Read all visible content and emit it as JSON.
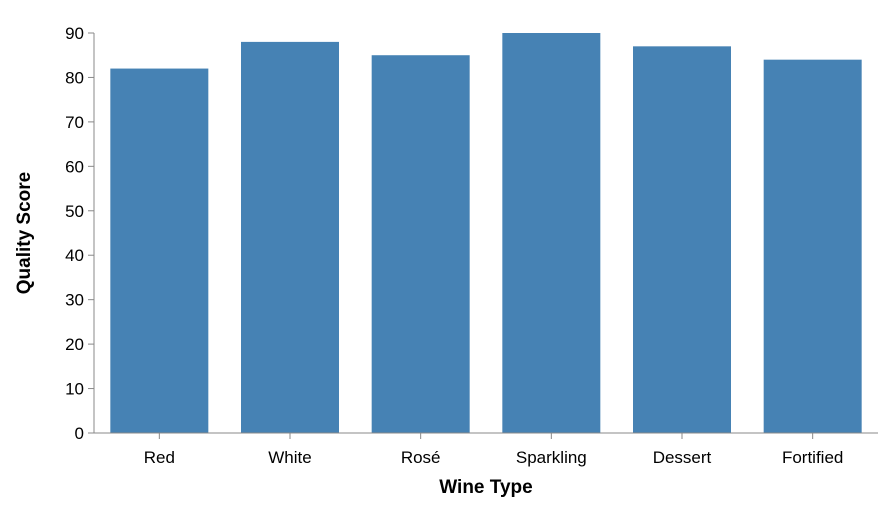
{
  "chart_data": {
    "type": "bar",
    "title": "",
    "xlabel": "Wine Type",
    "ylabel": "Quality Score",
    "categories": [
      "Red",
      "White",
      "Rosé",
      "Sparkling",
      "Dessert",
      "Fortified"
    ],
    "values": [
      82,
      88,
      85,
      90,
      87,
      84
    ],
    "ylim": [
      0,
      90
    ],
    "yticks": [
      0,
      10,
      20,
      30,
      40,
      50,
      60,
      70,
      80,
      90
    ],
    "grid": false,
    "colors": {
      "bar": "#4682b4",
      "axis": "#888888"
    }
  }
}
